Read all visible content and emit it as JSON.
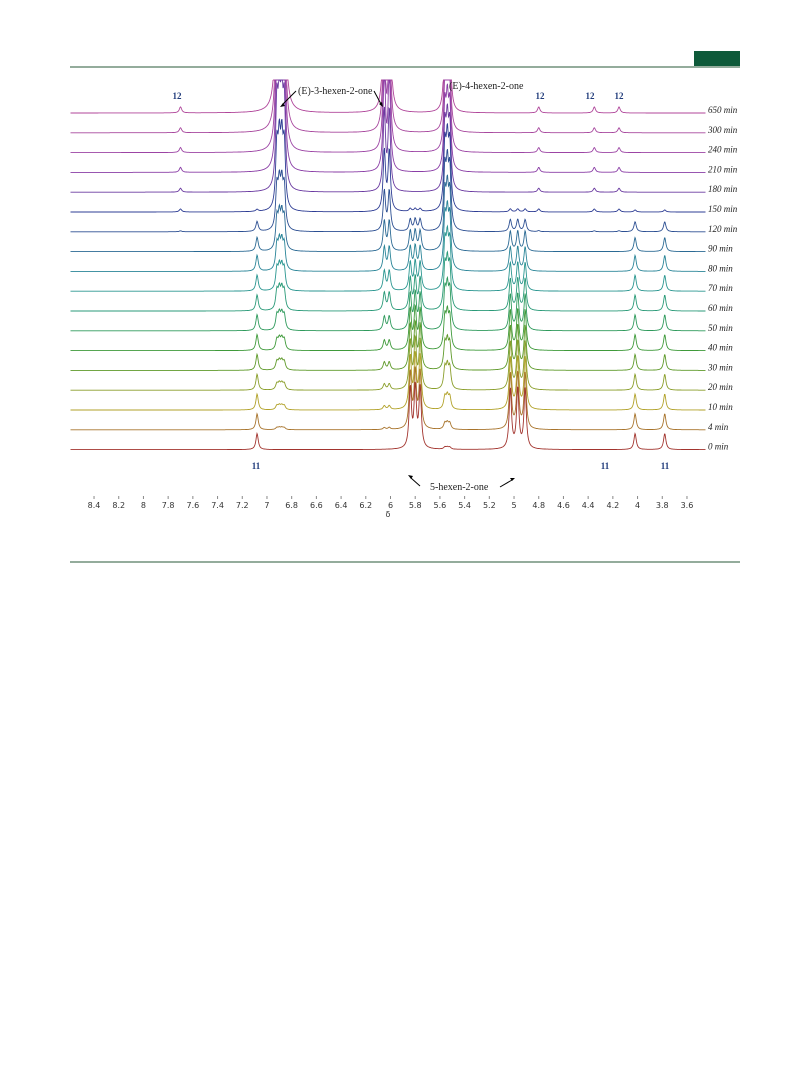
{
  "figure": {
    "x_axis": {
      "label": "δ",
      "xlim": [
        8.55,
        3.45
      ],
      "xticks": [
        8.4,
        8.2,
        8.0,
        7.8,
        7.6,
        7.4,
        7.2,
        7.0,
        6.8,
        6.6,
        6.4,
        6.2,
        6.0,
        5.8,
        5.6,
        5.4,
        5.2,
        5.0,
        4.8,
        4.6,
        4.4,
        4.2,
        4.0,
        3.8,
        3.6
      ]
    },
    "compounds": [
      {
        "name": "5-hexen-2-one",
        "peaks": [
          5.84,
          5.8,
          5.76,
          5.03,
          4.97,
          4.91
        ]
      },
      {
        "name": "(E)-3-hexen-2-one",
        "peaks": [
          6.92,
          6.9,
          6.88,
          6.86,
          6.05,
          6.01
        ]
      },
      {
        "name": "(E)-4-hexen-2-one",
        "peaks": [
          5.56,
          5.54,
          5.52
        ]
      },
      {
        "name": "11",
        "peaks": [
          7.08,
          4.02,
          3.78
        ]
      },
      {
        "name": "12",
        "peaks": [
          7.7,
          4.8,
          4.35,
          4.15
        ]
      }
    ],
    "traces": [
      {
        "label": "650 min",
        "color": "#b0469a",
        "amounts": [
          0,
          8,
          3,
          0,
          0.3
        ]
      },
      {
        "label": "300 min",
        "color": "#a8489e",
        "amounts": [
          0,
          7,
          3,
          0,
          0.25
        ]
      },
      {
        "label": "240 min",
        "color": "#9c44a4",
        "amounts": [
          0,
          6,
          3,
          0,
          0.25
        ]
      },
      {
        "label": "210 min",
        "color": "#8a3ea6",
        "amounts": [
          0,
          5,
          3,
          0,
          0.25
        ]
      },
      {
        "label": "180 min",
        "color": "#6a3aa0",
        "amounts": [
          0,
          4,
          3,
          0,
          0.2
        ]
      },
      {
        "label": "150 min",
        "color": "#2e3d94",
        "amounts": [
          0.15,
          3,
          3,
          0.1,
          0.15
        ]
      },
      {
        "label": "120 min",
        "color": "#2c4f92",
        "amounts": [
          0.6,
          2,
          2.8,
          0.5,
          0.05
        ]
      },
      {
        "label": "90 min",
        "color": "#2b6a94",
        "amounts": [
          1,
          1.5,
          2.6,
          0.7,
          0
        ]
      },
      {
        "label": "80 min",
        "color": "#2a8598",
        "amounts": [
          1.2,
          1.2,
          2.4,
          0.8,
          0
        ]
      },
      {
        "label": "70 min",
        "color": "#2a9690",
        "amounts": [
          1.4,
          1,
          2.2,
          0.8,
          0
        ]
      },
      {
        "label": "60 min",
        "color": "#2a9a78",
        "amounts": [
          1.6,
          0.9,
          2,
          0.8,
          0
        ]
      },
      {
        "label": "50 min",
        "color": "#2f9a5c",
        "amounts": [
          1.8,
          0.7,
          1.8,
          0.8,
          0
        ]
      },
      {
        "label": "40 min",
        "color": "#3f9a3a",
        "amounts": [
          2,
          0.5,
          1.5,
          0.8,
          0
        ]
      },
      {
        "label": "30 min",
        "color": "#5f9a2a",
        "amounts": [
          2.2,
          0.4,
          1.2,
          0.8,
          0
        ]
      },
      {
        "label": "20 min",
        "color": "#8a9e2a",
        "amounts": [
          2.4,
          0.3,
          1,
          0.8,
          0
        ]
      },
      {
        "label": "10 min",
        "color": "#b2a22a",
        "amounts": [
          2.6,
          0.2,
          0.6,
          0.8,
          0
        ]
      },
      {
        "label": "4 min",
        "color": "#a8742c",
        "amounts": [
          2.8,
          0.1,
          0.3,
          0.8,
          0
        ]
      },
      {
        "label": "0 min",
        "color": "#a2342e",
        "amounts": [
          3,
          0,
          0.1,
          0.8,
          0
        ]
      }
    ],
    "annotations": [
      "(E)-3-hexen-2-one",
      "(E)-4-hexen-2-one",
      "5-hexen-2-one"
    ],
    "labels_12": [
      "12",
      "12",
      "12",
      "12"
    ],
    "labels_11": [
      "11",
      "11",
      "11"
    ]
  }
}
